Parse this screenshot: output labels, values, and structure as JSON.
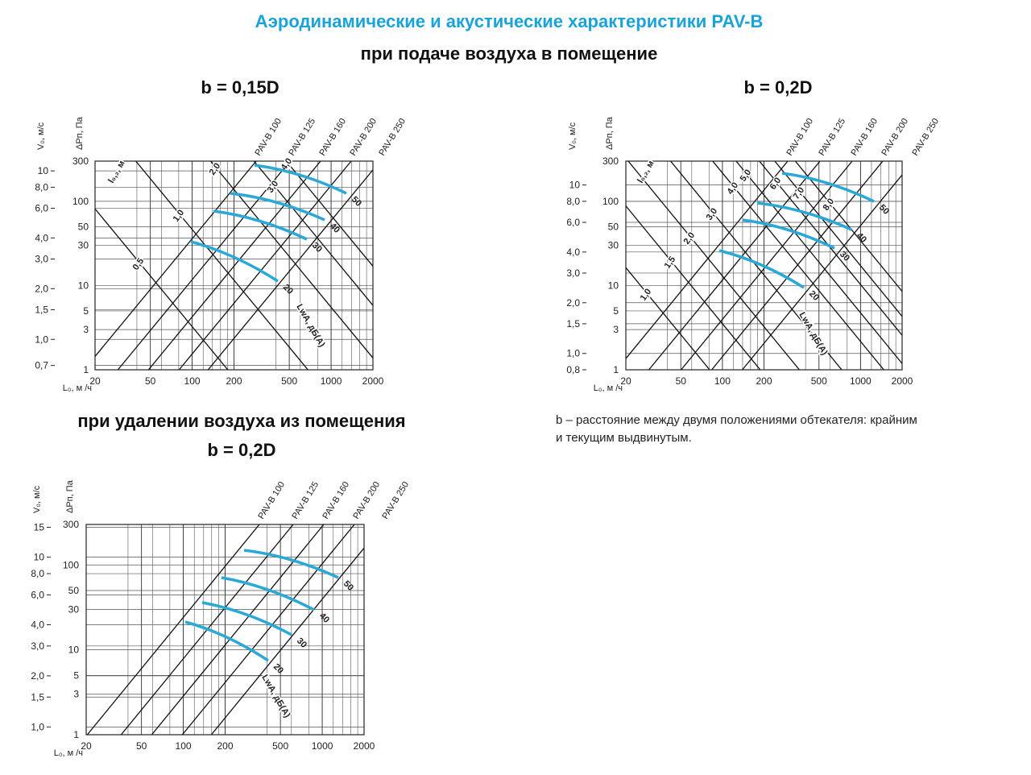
{
  "header": {
    "title": "Аэродинамические и акустические характеристики PAV-B",
    "subtitle": "при подаче воздуха в помещение"
  },
  "panels": [
    {
      "heading": "b = 0,15D",
      "v_axis_title": "V₀, м/с",
      "p_axis_title": "ΔPп, Па",
      "l_axis_title": "L₀, м /ч",
      "v_ticks": [
        "10",
        "8,0",
        "6,0",
        "4,0",
        "3,0",
        "2,0",
        "1,5",
        "1,0",
        "0,7"
      ],
      "p_ticks": [
        "300",
        "100",
        "50",
        "30",
        "10",
        "5",
        "3",
        "1"
      ],
      "l_ticks": [
        "20",
        "50",
        "100",
        "200",
        "500",
        "1000",
        "2000"
      ],
      "models": [
        "PAV-B 100",
        "PAV-B 125",
        "PAV-B 160",
        "PAV-B 200",
        "PAV-B 250"
      ],
      "throw_title": "l₀,₂, м",
      "throw_labels": [
        "0,5",
        "1,0",
        "2,0",
        "3,0",
        "4,0"
      ],
      "noise_title": "LwA, дБ(A)",
      "noise_labels": [
        "20",
        "30",
        "40",
        "50"
      ]
    },
    {
      "heading": "b = 0,2D",
      "v_axis_title": "V₀, м/с",
      "p_axis_title": "ΔPп, Па",
      "l_axis_title": "L₀, м /ч",
      "v_ticks": [
        "10",
        "8,0",
        "6,0",
        "4,0",
        "3,0",
        "2,0",
        "1,5",
        "1,0",
        "0,8"
      ],
      "p_ticks": [
        "300",
        "100",
        "50",
        "30",
        "10",
        "5",
        "3",
        "1"
      ],
      "l_ticks": [
        "20",
        "50",
        "100",
        "200",
        "500",
        "1000",
        "2000"
      ],
      "models": [
        "PAV-B 100",
        "PAV-B 125",
        "PAV-B 160",
        "PAV-B 200",
        "PAV-B 250"
      ],
      "throw_title": "l₀,₂, м",
      "throw_labels": [
        "1,0",
        "1,5",
        "2,0",
        "3,0",
        "4,0",
        "5,0",
        "6,0",
        "7,0",
        "8,0"
      ],
      "noise_title": "LwA, дБ(A)",
      "noise_labels": [
        "20",
        "30",
        "40",
        "50"
      ]
    },
    {
      "section": "при удалении воздуха из помещения",
      "heading": "b = 0,2D",
      "v_axis_title": "V₀, м/с",
      "p_axis_title": "ΔPп, Па",
      "l_axis_title": "L₀, м /ч",
      "v_ticks": [
        "15",
        "10",
        "8,0",
        "6,0",
        "4,0",
        "3,0",
        "2,0",
        "1,5",
        "1,0"
      ],
      "p_ticks": [
        "300",
        "100",
        "50",
        "30",
        "10",
        "5",
        "3",
        "1"
      ],
      "l_ticks": [
        "20",
        "50",
        "100",
        "200",
        "500",
        "1000",
        "2000"
      ],
      "models": [
        "PAV-B 100",
        "PAV-B 125",
        "PAV-B 160",
        "PAV-B 200",
        "PAV-B 250"
      ],
      "noise_title": "LwA, дБ(A)",
      "noise_labels": [
        "20",
        "30",
        "40",
        "50"
      ]
    }
  ],
  "note": [
    "b – расстояние между двумя положениями обтекателя: крайним",
    "и текущим выдвинутым."
  ]
}
